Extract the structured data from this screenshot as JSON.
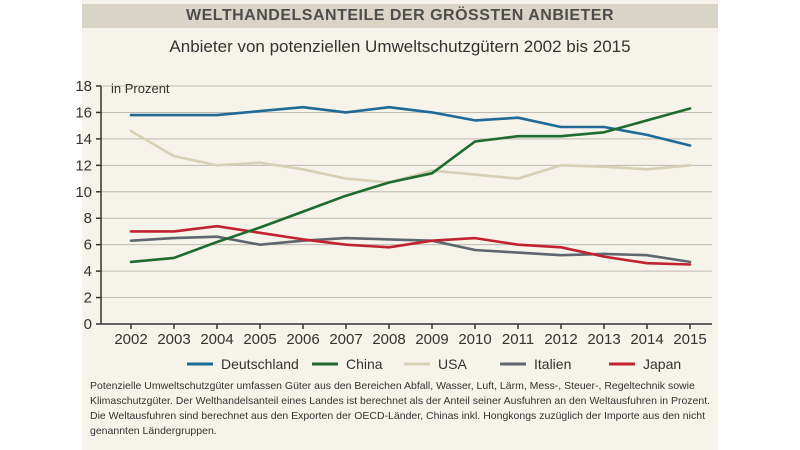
{
  "header": {
    "title": "WELTHANDELSANTEILE DER GRÖSSTEN ANBIETER"
  },
  "footnote": "Potenzielle Umweltschutzgüter umfassen Güter aus den Bereichen Abfall, Wasser, Luft, Lärm, Mess-, Steuer-, Regeltechnik sowie Klimaschutzgüter. Der Welthandelsanteil eines Landes ist berechnet als der Anteil seiner Ausfuhren an den Weltausfuhren in Prozent. Die Weltausfuhren sind berechnet aus den Exporten der OECD-Länder, Chinas inkl. Hongkongs zuzüglich der Importe aus den nicht genannten Ländergruppen.",
  "chart_data": {
    "type": "line",
    "title": "Anbieter von potenziellen Umweltschutzgütern 2002 bis 2015",
    "ylabel": "in Prozent",
    "xlabel": "",
    "x": [
      "2002",
      "2003",
      "2004",
      "2005",
      "2006",
      "2007",
      "2008",
      "2009",
      "2010",
      "2011",
      "2012",
      "2013",
      "2014",
      "2015"
    ],
    "ylim": [
      0,
      18
    ],
    "yticks": [
      0,
      2,
      4,
      6,
      8,
      10,
      12,
      14,
      16,
      18
    ],
    "grid": true,
    "legend_position": "bottom",
    "series": [
      {
        "name": "Deutschland",
        "color": "#1f6a96",
        "values": [
          15.8,
          15.8,
          15.8,
          16.1,
          16.4,
          16.0,
          16.4,
          16.0,
          15.4,
          15.6,
          14.9,
          14.9,
          14.3,
          13.5
        ]
      },
      {
        "name": "China",
        "color": "#1f6b2e",
        "values": [
          4.7,
          5.0,
          6.2,
          7.3,
          8.5,
          9.7,
          10.7,
          11.4,
          13.8,
          14.2,
          14.2,
          14.5,
          15.4,
          16.3
        ]
      },
      {
        "name": "USA",
        "color": "#d6d0b4",
        "values": [
          14.6,
          12.7,
          12.0,
          12.2,
          11.7,
          11.0,
          10.7,
          11.6,
          11.3,
          11.0,
          12.0,
          11.9,
          11.7,
          12.0
        ]
      },
      {
        "name": "Italien",
        "color": "#5e6670",
        "values": [
          6.3,
          6.5,
          6.6,
          6.0,
          6.3,
          6.5,
          6.4,
          6.3,
          5.6,
          5.4,
          5.2,
          5.3,
          5.2,
          4.7
        ]
      },
      {
        "name": "Japan",
        "color": "#c0232f",
        "values": [
          7.0,
          7.0,
          7.4,
          6.9,
          6.4,
          6.0,
          5.8,
          6.3,
          6.5,
          6.0,
          5.8,
          5.1,
          4.6,
          4.5
        ]
      }
    ]
  }
}
